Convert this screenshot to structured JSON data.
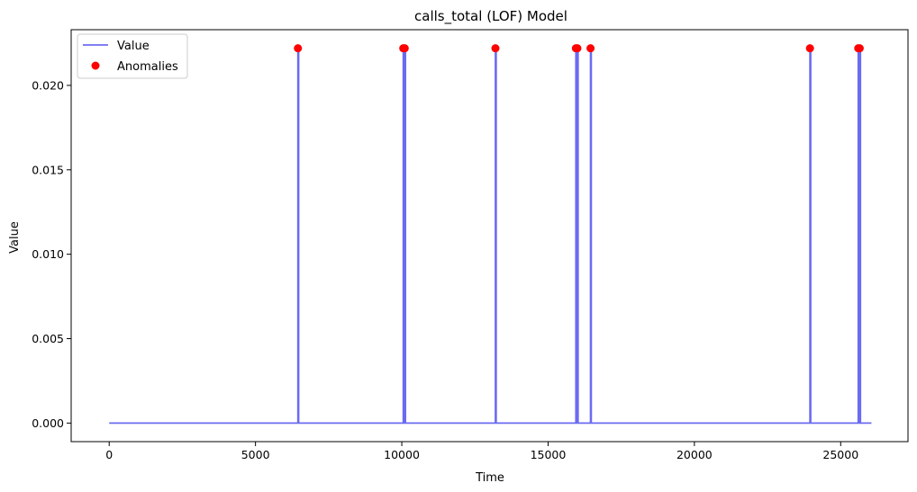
{
  "chart_data": {
    "type": "line",
    "title": "calls_total (LOF) Model",
    "xlabel": "Time",
    "ylabel": "Value",
    "xlim": [
      -1300,
      27300
    ],
    "ylim": [
      -0.0011,
      0.0233
    ],
    "xticks": [
      "0",
      "5000",
      "10000",
      "15000",
      "20000",
      "25000"
    ],
    "xtick_values": [
      0,
      5000,
      10000,
      15000,
      20000,
      25000
    ],
    "yticks": [
      "0.000",
      "0.005",
      "0.010",
      "0.015",
      "0.020"
    ],
    "ytick_values": [
      0,
      0.005,
      0.01,
      0.015,
      0.02
    ],
    "grid": false,
    "legend_position": "upper-left",
    "x_range": [
      0,
      26050
    ],
    "series": [
      {
        "name": "Value",
        "kind": "line",
        "color": "#6b6bf0",
        "baseline": 0.0,
        "spikes": [
          {
            "x": 6450,
            "y": 0.0222
          },
          {
            "x": 10050,
            "y": 0.0222
          },
          {
            "x": 10100,
            "y": 0.0222
          },
          {
            "x": 13200,
            "y": 0.0222
          },
          {
            "x": 15950,
            "y": 0.0222
          },
          {
            "x": 16000,
            "y": 0.0222
          },
          {
            "x": 16450,
            "y": 0.0222
          },
          {
            "x": 23950,
            "y": 0.0222
          },
          {
            "x": 25600,
            "y": 0.0222
          },
          {
            "x": 25650,
            "y": 0.0222
          }
        ]
      },
      {
        "name": "Anomalies",
        "kind": "scatter",
        "color": "#ff0000",
        "points": [
          {
            "x": 6450,
            "y": 0.0222
          },
          {
            "x": 10050,
            "y": 0.0222
          },
          {
            "x": 10100,
            "y": 0.0222
          },
          {
            "x": 13200,
            "y": 0.0222
          },
          {
            "x": 15950,
            "y": 0.0222
          },
          {
            "x": 16000,
            "y": 0.0222
          },
          {
            "x": 16450,
            "y": 0.0222
          },
          {
            "x": 23950,
            "y": 0.0222
          },
          {
            "x": 25600,
            "y": 0.0222
          },
          {
            "x": 25650,
            "y": 0.0222
          }
        ]
      }
    ]
  }
}
